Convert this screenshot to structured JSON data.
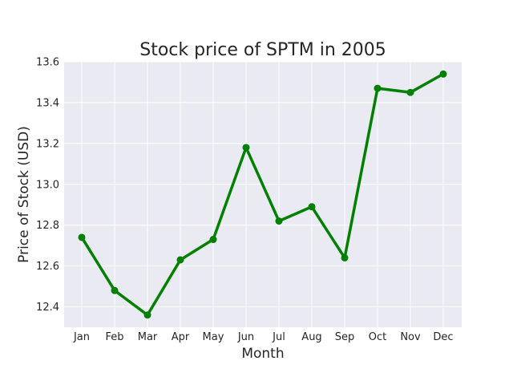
{
  "chart_data": {
    "type": "line",
    "title": "Stock price of SPTM in 2005",
    "xlabel": "Month",
    "ylabel": "Price of Stock (USD)",
    "categories": [
      "Jan",
      "Feb",
      "Mar",
      "Apr",
      "May",
      "Jun",
      "Jul",
      "Aug",
      "Sep",
      "Oct",
      "Nov",
      "Dec"
    ],
    "series": [
      {
        "values": [
          12.74,
          12.48,
          12.36,
          12.63,
          12.73,
          13.18,
          12.82,
          12.89,
          12.64,
          13.47,
          13.45,
          13.54
        ]
      }
    ],
    "ylim": [
      12.3,
      13.6
    ],
    "yticks": [
      12.4,
      12.6,
      12.8,
      13.0,
      13.2,
      13.4,
      13.6
    ],
    "grid": true,
    "colors": {
      "line": "#008000",
      "plot_bg": "#EAEAF2",
      "grid": "#FFFFFF"
    }
  }
}
